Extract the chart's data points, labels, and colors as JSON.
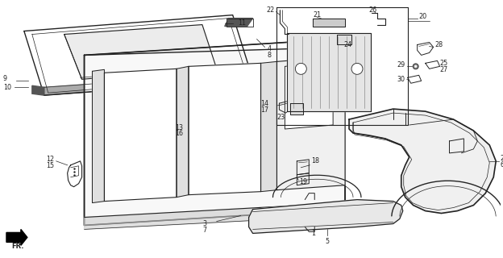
{
  "bg_color": "#ffffff",
  "line_color": "#222222",
  "fig_width": 6.24,
  "fig_height": 3.2,
  "dpi": 100
}
